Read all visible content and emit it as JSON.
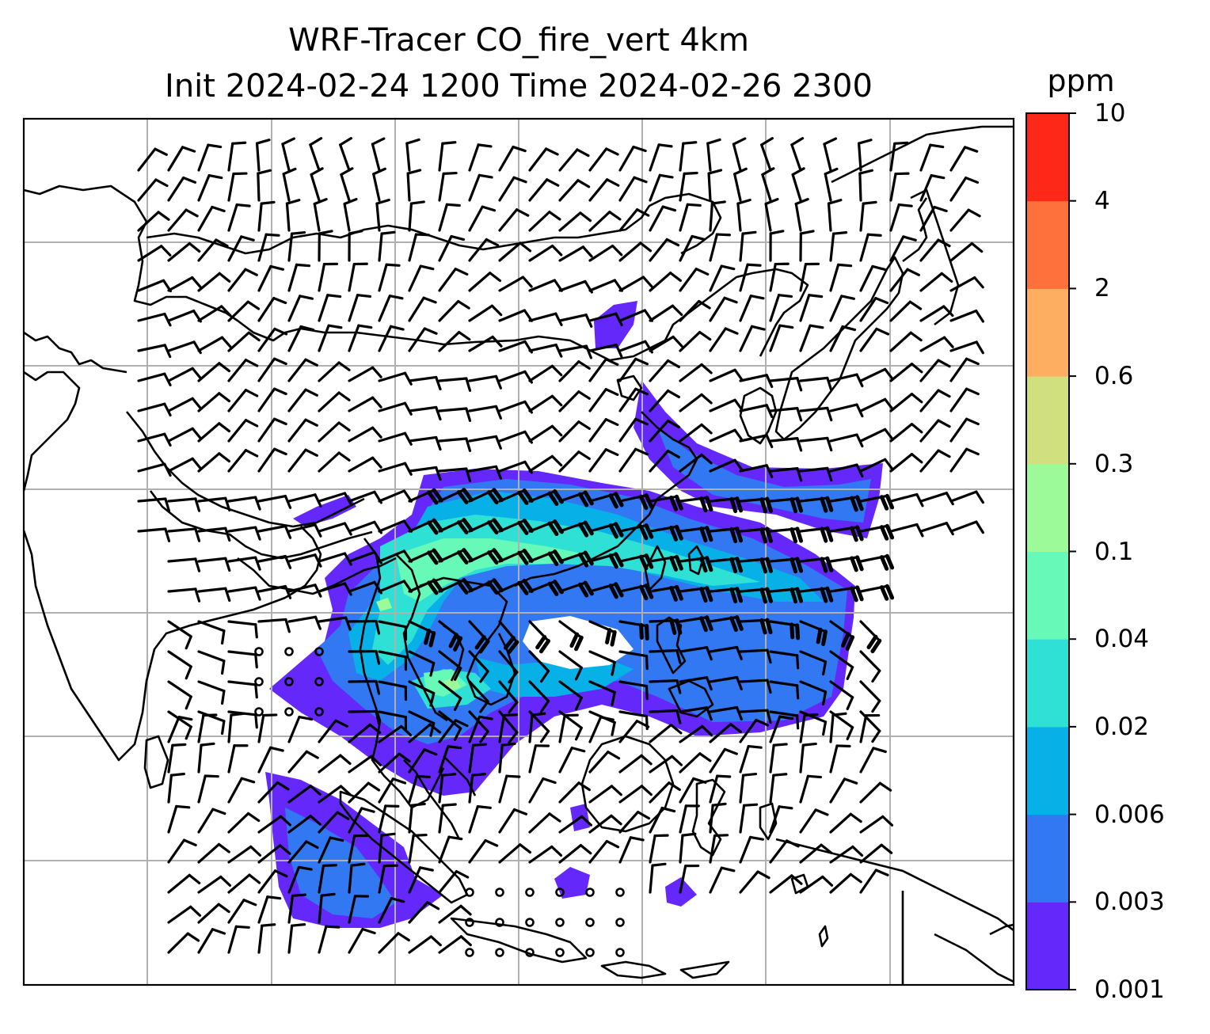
{
  "title_line1": "WRF-Tracer CO_fire_vert 4km",
  "title_line2": "Init 2024-02-24 1200 Time 2024-02-26 2300",
  "colorbar": {
    "unit": "ppm",
    "ticks": [
      "0.001",
      "0.003",
      "0.006",
      "0.02",
      "0.04",
      "0.1",
      "0.3",
      "0.6",
      "2",
      "4",
      "10"
    ],
    "colors": [
      "#6528fa",
      "#3278f3",
      "#07b1e8",
      "#2fe0d4",
      "#66f9b7",
      "#9cfb98",
      "#d0e07f",
      "#feae61",
      "#fe703c",
      "#fe2818"
    ]
  },
  "map": {
    "variable": "CO_fire_vert",
    "vertical_level": "4km",
    "plume_color_low": "#6528fa",
    "coastline_color": "#000000",
    "gridline_color": "#b0b0b0",
    "wind_symbols": "wind barbs"
  }
}
